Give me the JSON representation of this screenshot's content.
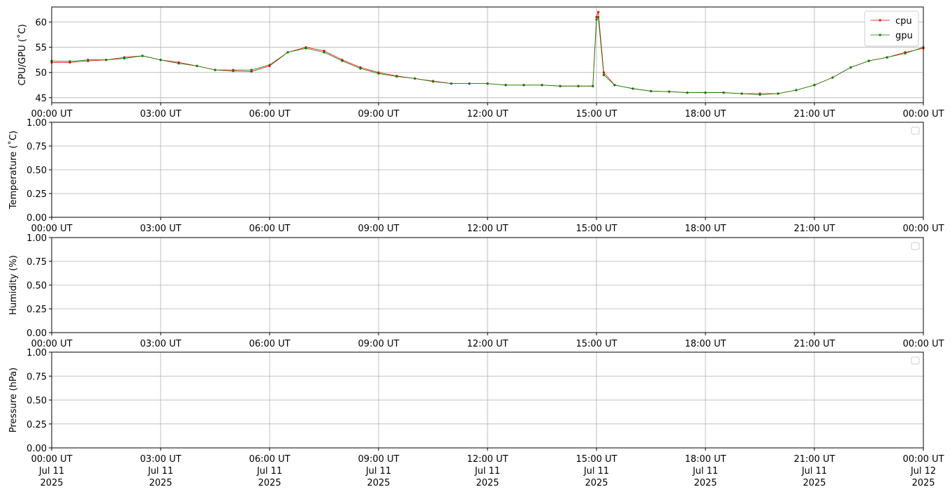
{
  "chart_data": [
    {
      "type": "line",
      "ylabel": "CPU/GPU (˚C)",
      "x": [
        0,
        0.5,
        1,
        1.5,
        2,
        2.5,
        3,
        3.5,
        4,
        4.5,
        5,
        5.5,
        6,
        6.5,
        7,
        7.5,
        8,
        8.5,
        9,
        9.5,
        10,
        10.5,
        11,
        11.5,
        12,
        12.5,
        13,
        13.5,
        14,
        14.5,
        14.9,
        15,
        15.05,
        15.2,
        15.5,
        16,
        16.5,
        17,
        17.5,
        18,
        18.5,
        19,
        19.5,
        20,
        20.5,
        21,
        21.5,
        22,
        22.5,
        23,
        23.5,
        24
      ],
      "series": [
        {
          "name": "cpu",
          "color": "#ff0000",
          "values": [
            52,
            52,
            52.3,
            52.5,
            53,
            53.3,
            52.5,
            52,
            51.3,
            50.5,
            50.3,
            50.2,
            51.3,
            54,
            55,
            54.3,
            52.5,
            51,
            50,
            49.3,
            48.8,
            48.3,
            47.8,
            47.8,
            47.8,
            47.5,
            47.5,
            47.5,
            47.3,
            47.3,
            47.3,
            61,
            62,
            50,
            47.5,
            46.8,
            46.3,
            46.2,
            46,
            46,
            46,
            45.8,
            45.8,
            45.8,
            46.5,
            47.5,
            49,
            51,
            52.3,
            53,
            54,
            54.8
          ]
        },
        {
          "name": "gpu",
          "color": "#008000",
          "values": [
            52.3,
            52.2,
            52.5,
            52.5,
            52.8,
            53.3,
            52.5,
            51.8,
            51.3,
            50.5,
            50.5,
            50.5,
            51.5,
            54,
            54.8,
            54,
            52.3,
            50.8,
            49.8,
            49.2,
            48.8,
            48.2,
            47.8,
            47.8,
            47.8,
            47.5,
            47.5,
            47.5,
            47.3,
            47.3,
            47.3,
            60.5,
            61,
            49.5,
            47.5,
            46.8,
            46.3,
            46.2,
            46,
            46,
            46,
            45.8,
            45.6,
            45.8,
            46.5,
            47.5,
            49,
            51,
            52.3,
            53,
            53.8,
            55
          ]
        }
      ],
      "xlim": [
        0,
        24
      ],
      "ylim": [
        44,
        63
      ],
      "yticks": [
        45,
        50,
        55,
        60
      ],
      "grid": true,
      "legend": "upper right",
      "xticks": [
        {
          "value": 0,
          "label": "00:00 UT"
        },
        {
          "value": 3,
          "label": "03:00 UT"
        },
        {
          "value": 6,
          "label": "06:00 UT"
        },
        {
          "value": 9,
          "label": "09:00 UT"
        },
        {
          "value": 12,
          "label": "12:00 UT"
        },
        {
          "value": 15,
          "label": "15:00 UT"
        },
        {
          "value": 18,
          "label": "18:00 UT"
        },
        {
          "value": 21,
          "label": "21:00 UT"
        },
        {
          "value": 24,
          "label": "00:00 UT"
        }
      ]
    },
    {
      "type": "line",
      "ylabel": "Temperature (˚C)",
      "x": [],
      "series": [],
      "xlim": [
        0,
        24
      ],
      "ylim": [
        0,
        1
      ],
      "grid": true,
      "legend": "upper right",
      "yticks": [
        {
          "value": 0,
          "label": "0.00"
        },
        {
          "value": 0.25,
          "label": "0.25"
        },
        {
          "value": 0.5,
          "label": "0.50"
        },
        {
          "value": 0.75,
          "label": "0.75"
        },
        {
          "value": 1,
          "label": "1.00"
        }
      ],
      "xticks": [
        {
          "value": 0,
          "label": "00:00 UT"
        },
        {
          "value": 3,
          "label": "03:00 UT"
        },
        {
          "value": 6,
          "label": "06:00 UT"
        },
        {
          "value": 9,
          "label": "09:00 UT"
        },
        {
          "value": 12,
          "label": "12:00 UT"
        },
        {
          "value": 15,
          "label": "15:00 UT"
        },
        {
          "value": 18,
          "label": "18:00 UT"
        },
        {
          "value": 21,
          "label": "21:00 UT"
        },
        {
          "value": 24,
          "label": "00:00 UT"
        }
      ]
    },
    {
      "type": "line",
      "ylabel": "Humidity (%)",
      "x": [],
      "series": [],
      "xlim": [
        0,
        24
      ],
      "ylim": [
        0,
        1
      ],
      "grid": true,
      "legend": "upper right",
      "yticks": [
        {
          "value": 0,
          "label": "0.00"
        },
        {
          "value": 0.25,
          "label": "0.25"
        },
        {
          "value": 0.5,
          "label": "0.50"
        },
        {
          "value": 0.75,
          "label": "0.75"
        },
        {
          "value": 1,
          "label": "1.00"
        }
      ],
      "xticks": [
        {
          "value": 0,
          "label": "00:00 UT"
        },
        {
          "value": 3,
          "label": "03:00 UT"
        },
        {
          "value": 6,
          "label": "06:00 UT"
        },
        {
          "value": 9,
          "label": "09:00 UT"
        },
        {
          "value": 12,
          "label": "12:00 UT"
        },
        {
          "value": 15,
          "label": "15:00 UT"
        },
        {
          "value": 18,
          "label": "18:00 UT"
        },
        {
          "value": 21,
          "label": "21:00 UT"
        },
        {
          "value": 24,
          "label": "00:00 UT"
        }
      ]
    },
    {
      "type": "line",
      "ylabel": "Pressure (hPa)",
      "x": [],
      "series": [],
      "xlim": [
        0,
        24
      ],
      "ylim": [
        0,
        1
      ],
      "grid": true,
      "legend": "upper right",
      "yticks": [
        {
          "value": 0,
          "label": "0.00"
        },
        {
          "value": 0.25,
          "label": "0.25"
        },
        {
          "value": 0.5,
          "label": "0.50"
        },
        {
          "value": 0.75,
          "label": "0.75"
        },
        {
          "value": 1,
          "label": "1.00"
        }
      ],
      "xticks": [
        {
          "value": 0,
          "label": "00:00 UT\nJul 11\n2025"
        },
        {
          "value": 3,
          "label": "03:00 UT\nJul 11\n2025"
        },
        {
          "value": 6,
          "label": "06:00 UT\nJul 11\n2025"
        },
        {
          "value": 9,
          "label": "09:00 UT\nJul 11\n2025"
        },
        {
          "value": 12,
          "label": "12:00 UT\nJul 11\n2025"
        },
        {
          "value": 15,
          "label": "15:00 UT\nJul 11\n2025"
        },
        {
          "value": 18,
          "label": "18:00 UT\nJul 11\n2025"
        },
        {
          "value": 21,
          "label": "21:00 UT\nJul 11\n2025"
        },
        {
          "value": 24,
          "label": "00:00 UT\nJul 12\n2025"
        }
      ]
    }
  ]
}
